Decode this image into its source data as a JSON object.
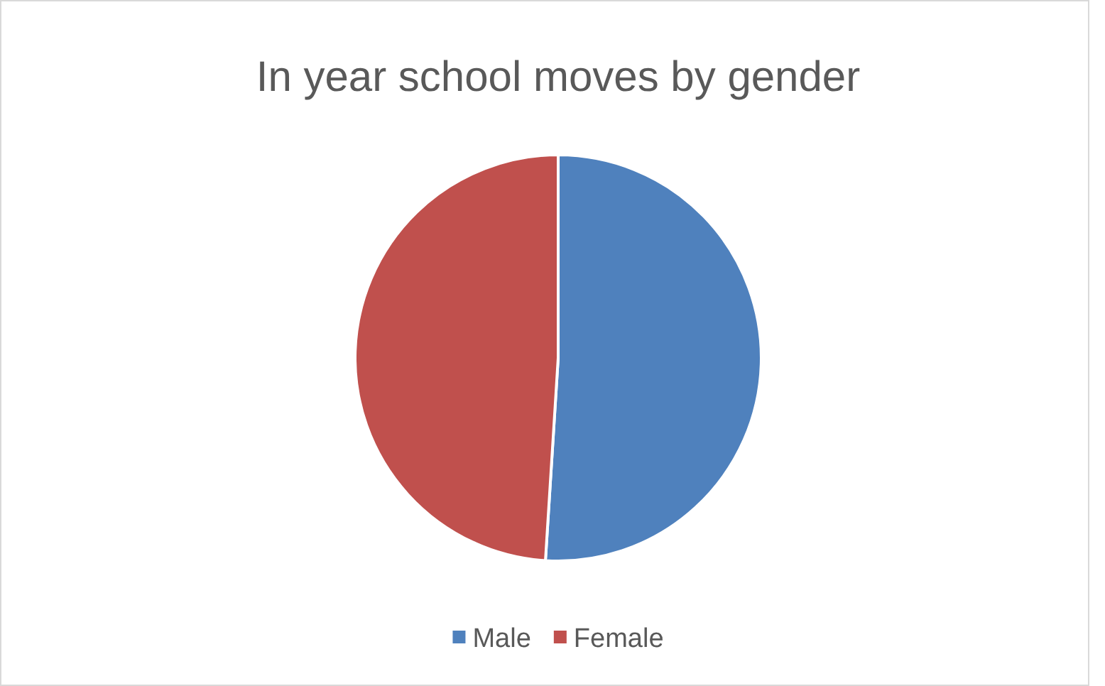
{
  "chart_data": {
    "type": "pie",
    "title": "In year school moves by gender",
    "categories": [
      "Male",
      "Female"
    ],
    "values": [
      51,
      49
    ],
    "colors": [
      "#4f81bd",
      "#c0504d"
    ],
    "legend": "bottom"
  }
}
